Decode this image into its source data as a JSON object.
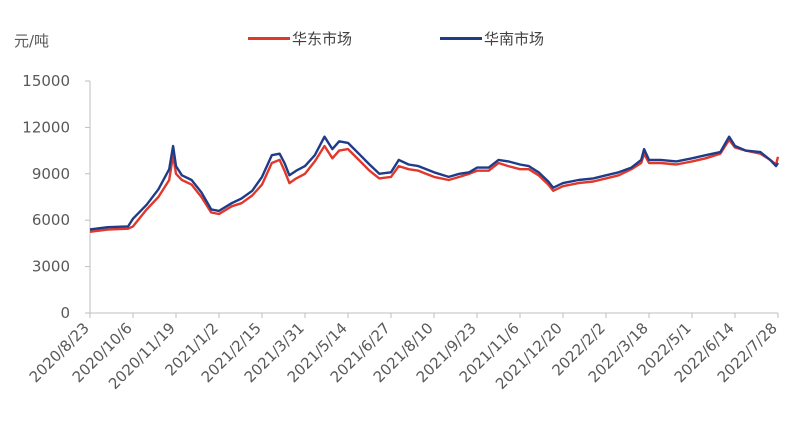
{
  "chart_data": {
    "type": "line",
    "ylabel": "元/吨",
    "ylim": [
      0,
      15000
    ],
    "yticks": [
      "15000",
      "12000",
      "9000",
      "6000",
      "3000",
      "0"
    ],
    "x_tick_labels": [
      "2020/8/23",
      "2020/10/6",
      "2020/11/19",
      "2021/1/2",
      "2021/2/15",
      "2021/3/31",
      "2021/5/14",
      "2021/6/27",
      "2021/8/10",
      "2021/9/23",
      "2021/11/6",
      "2021/12/20",
      "2022/2/2",
      "2022/3/18",
      "2022/5/1",
      "2022/6/14",
      "2022/7/28"
    ],
    "legend_position": "top-center",
    "grid": false,
    "series": [
      {
        "name": "华东市场",
        "color": "#e2382b",
        "points": [
          [
            "2020/8/23",
            5250
          ],
          [
            "2020/9/10",
            5400
          ],
          [
            "2020/10/1",
            5450
          ],
          [
            "2020/10/6",
            5600
          ],
          [
            "2020/10/20",
            6700
          ],
          [
            "2020/11/1",
            7500
          ],
          [
            "2020/11/12",
            8600
          ],
          [
            "2020/11/16",
            10200
          ],
          [
            "2020/11/19",
            9000
          ],
          [
            "2020/11/25",
            8600
          ],
          [
            "2020/12/5",
            8300
          ],
          [
            "2020/12/15",
            7500
          ],
          [
            "2020/12/25",
            6500
          ],
          [
            "2021/1/2",
            6400
          ],
          [
            "2021/1/15",
            6900
          ],
          [
            "2021/1/25",
            7100
          ],
          [
            "2021/2/5",
            7600
          ],
          [
            "2021/2/15",
            8300
          ],
          [
            "2021/2/25",
            9700
          ],
          [
            "2021/3/5",
            9900
          ],
          [
            "2021/3/10",
            9200
          ],
          [
            "2021/3/15",
            8400
          ],
          [
            "2021/3/22",
            8700
          ],
          [
            "2021/3/31",
            9000
          ],
          [
            "2021/4/10",
            9800
          ],
          [
            "2021/4/20",
            10800
          ],
          [
            "2021/4/28",
            10000
          ],
          [
            "2021/5/5",
            10500
          ],
          [
            "2021/5/14",
            10600
          ],
          [
            "2021/5/25",
            9900
          ],
          [
            "2021/6/5",
            9200
          ],
          [
            "2021/6/15",
            8700
          ],
          [
            "2021/6/27",
            8800
          ],
          [
            "2021/7/5",
            9500
          ],
          [
            "2021/7/15",
            9300
          ],
          [
            "2021/7/25",
            9200
          ],
          [
            "2021/8/10",
            8800
          ],
          [
            "2021/8/25",
            8600
          ],
          [
            "2021/9/5",
            8800
          ],
          [
            "2021/9/15",
            9000
          ],
          [
            "2021/9/23",
            9200
          ],
          [
            "2021/10/5",
            9200
          ],
          [
            "2021/10/15",
            9700
          ],
          [
            "2021/10/25",
            9500
          ],
          [
            "2021/11/6",
            9300
          ],
          [
            "2021/11/15",
            9300
          ],
          [
            "2021/11/25",
            8900
          ],
          [
            "2021/12/5",
            8300
          ],
          [
            "2021/12/10",
            7900
          ],
          [
            "2021/12/20",
            8200
          ],
          [
            "2022/1/5",
            8400
          ],
          [
            "2022/1/20",
            8500
          ],
          [
            "2022/2/2",
            8700
          ],
          [
            "2022/2/15",
            8900
          ],
          [
            "2022/2/28",
            9300
          ],
          [
            "2022/3/10",
            9700
          ],
          [
            "2022/3/13",
            10300
          ],
          [
            "2022/3/18",
            9700
          ],
          [
            "2022/3/30",
            9700
          ],
          [
            "2022/4/15",
            9600
          ],
          [
            "2022/5/1",
            9800
          ],
          [
            "2022/5/15",
            10000
          ],
          [
            "2022/5/30",
            10300
          ],
          [
            "2022/6/8",
            11200
          ],
          [
            "2022/6/14",
            10700
          ],
          [
            "2022/6/25",
            10500
          ],
          [
            "2022/7/10",
            10300
          ],
          [
            "2022/7/20",
            9900
          ],
          [
            "2022/7/26",
            9600
          ],
          [
            "2022/7/28",
            10100
          ]
        ]
      },
      {
        "name": "华南市场",
        "color": "#1f3c88",
        "points": [
          [
            "2020/8/23",
            5400
          ],
          [
            "2020/9/10",
            5550
          ],
          [
            "2020/10/1",
            5600
          ],
          [
            "2020/10/6",
            6100
          ],
          [
            "2020/10/20",
            7000
          ],
          [
            "2020/11/1",
            8000
          ],
          [
            "2020/11/12",
            9300
          ],
          [
            "2020/11/16",
            10800
          ],
          [
            "2020/11/19",
            9500
          ],
          [
            "2020/11/25",
            8900
          ],
          [
            "2020/12/5",
            8600
          ],
          [
            "2020/12/15",
            7800
          ],
          [
            "2020/12/25",
            6700
          ],
          [
            "2021/1/2",
            6600
          ],
          [
            "2021/1/15",
            7100
          ],
          [
            "2021/1/25",
            7400
          ],
          [
            "2021/2/5",
            7900
          ],
          [
            "2021/2/15",
            8800
          ],
          [
            "2021/2/25",
            10200
          ],
          [
            "2021/3/5",
            10300
          ],
          [
            "2021/3/10",
            9700
          ],
          [
            "2021/3/15",
            8900
          ],
          [
            "2021/3/22",
            9200
          ],
          [
            "2021/3/31",
            9500
          ],
          [
            "2021/4/10",
            10200
          ],
          [
            "2021/4/20",
            11400
          ],
          [
            "2021/4/28",
            10600
          ],
          [
            "2021/5/5",
            11100
          ],
          [
            "2021/5/14",
            11000
          ],
          [
            "2021/5/25",
            10300
          ],
          [
            "2021/6/5",
            9600
          ],
          [
            "2021/6/15",
            9000
          ],
          [
            "2021/6/27",
            9100
          ],
          [
            "2021/7/5",
            9900
          ],
          [
            "2021/7/15",
            9600
          ],
          [
            "2021/7/25",
            9500
          ],
          [
            "2021/8/10",
            9100
          ],
          [
            "2021/8/25",
            8800
          ],
          [
            "2021/9/5",
            9000
          ],
          [
            "2021/9/15",
            9100
          ],
          [
            "2021/9/23",
            9400
          ],
          [
            "2021/10/5",
            9400
          ],
          [
            "2021/10/15",
            9900
          ],
          [
            "2021/10/25",
            9800
          ],
          [
            "2021/11/6",
            9600
          ],
          [
            "2021/11/15",
            9500
          ],
          [
            "2021/11/25",
            9100
          ],
          [
            "2021/12/5",
            8500
          ],
          [
            "2021/12/10",
            8100
          ],
          [
            "2021/12/20",
            8400
          ],
          [
            "2022/1/5",
            8600
          ],
          [
            "2022/1/20",
            8700
          ],
          [
            "2022/2/2",
            8900
          ],
          [
            "2022/2/15",
            9100
          ],
          [
            "2022/2/28",
            9400
          ],
          [
            "2022/3/10",
            9900
          ],
          [
            "2022/3/13",
            10600
          ],
          [
            "2022/3/18",
            9900
          ],
          [
            "2022/3/30",
            9900
          ],
          [
            "2022/4/15",
            9800
          ],
          [
            "2022/5/1",
            10000
          ],
          [
            "2022/5/15",
            10200
          ],
          [
            "2022/5/30",
            10400
          ],
          [
            "2022/6/8",
            11400
          ],
          [
            "2022/6/14",
            10800
          ],
          [
            "2022/6/25",
            10500
          ],
          [
            "2022/7/10",
            10400
          ],
          [
            "2022/7/20",
            9900
          ],
          [
            "2022/7/26",
            9500
          ],
          [
            "2022/7/28",
            9700
          ]
        ]
      }
    ]
  }
}
